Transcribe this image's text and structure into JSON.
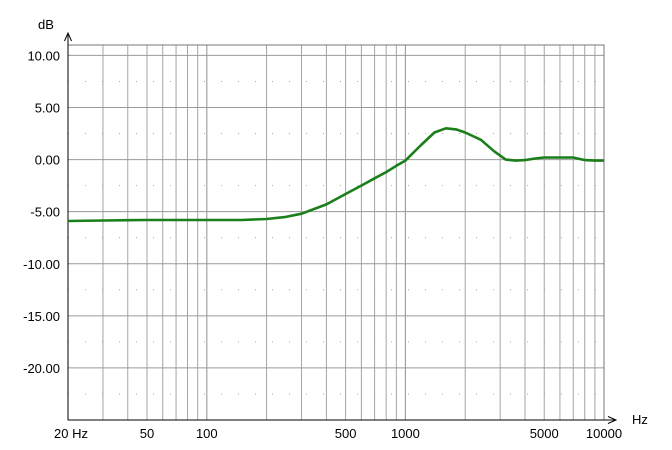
{
  "chart_data": {
    "type": "line",
    "title": "",
    "xlabel": "Hz",
    "ylabel": "dB",
    "x_scale": "log",
    "xlim": [
      20,
      10000
    ],
    "ylim": [
      -25,
      11
    ],
    "grid": true,
    "legend": "none",
    "x_tick_labels": [
      "20 Hz",
      "50",
      "100",
      "500",
      "1000",
      "5000",
      "10000"
    ],
    "x_tick_values": [
      20,
      50,
      100,
      500,
      1000,
      5000,
      10000
    ],
    "y_tick_labels": [
      "10.00",
      "5.00",
      "0.00",
      "-5.00",
      "-10.00",
      "-15.00",
      "-20.00"
    ],
    "y_tick_values": [
      10,
      5,
      0,
      -5,
      -10,
      -15,
      -20
    ],
    "series": [
      {
        "color": "#1a7f1a",
        "x": [
          20,
          30,
          50,
          100,
          150,
          200,
          250,
          300,
          400,
          500,
          600,
          700,
          800,
          900,
          1000,
          1200,
          1400,
          1600,
          1800,
          2000,
          2400,
          2800,
          3200,
          3600,
          4000,
          4500,
          5000,
          6000,
          7000,
          8000,
          9000,
          10000
        ],
        "y": [
          -5.9,
          -5.85,
          -5.8,
          -5.8,
          -5.8,
          -5.7,
          -5.5,
          -5.2,
          -4.3,
          -3.3,
          -2.5,
          -1.8,
          -1.2,
          -0.6,
          -0.1,
          1.4,
          2.6,
          3.0,
          2.9,
          2.6,
          1.9,
          0.8,
          0.0,
          -0.1,
          -0.05,
          0.1,
          0.2,
          0.2,
          0.2,
          -0.05,
          -0.1,
          -0.1
        ]
      }
    ]
  }
}
